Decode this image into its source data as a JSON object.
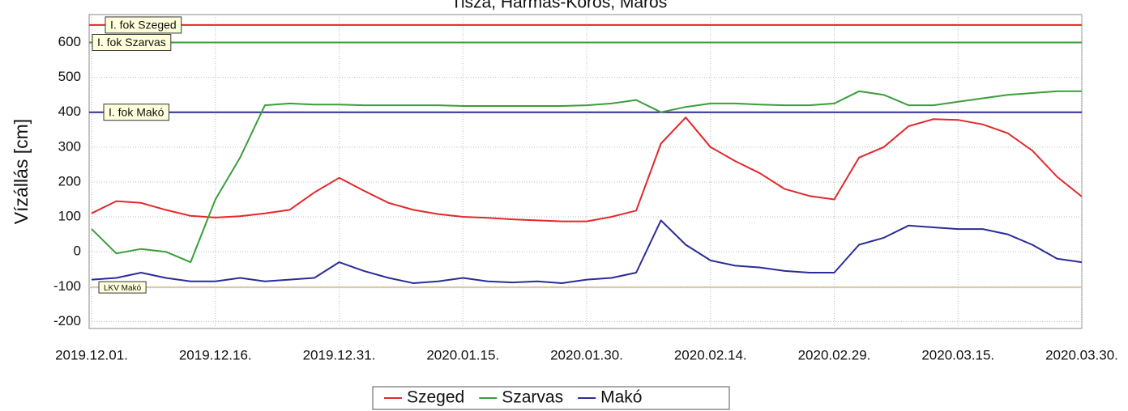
{
  "chart_data": {
    "type": "line",
    "title": "Tisza, Hármas-Körös, Maros",
    "y_label": "Vízállás [cm]",
    "x": [
      "2019-12-01",
      "2019-12-04",
      "2019-12-07",
      "2019-12-10",
      "2019-12-13",
      "2019-12-16",
      "2019-12-19",
      "2019-12-22",
      "2019-12-25",
      "2019-12-28",
      "2019-12-31",
      "2020-01-03",
      "2020-01-06",
      "2020-01-09",
      "2020-01-12",
      "2020-01-15",
      "2020-01-18",
      "2020-01-21",
      "2020-01-24",
      "2020-01-27",
      "2020-01-30",
      "2020-02-02",
      "2020-02-05",
      "2020-02-08",
      "2020-02-11",
      "2020-02-14",
      "2020-02-17",
      "2020-02-20",
      "2020-02-23",
      "2020-02-26",
      "2020-02-29",
      "2020-03-03",
      "2020-03-06",
      "2020-03-09",
      "2020-03-12",
      "2020-03-15",
      "2020-03-18",
      "2020-03-21",
      "2020-03-24",
      "2020-03-27",
      "2020-03-30"
    ],
    "series": [
      {
        "name": "Szeged",
        "color": "#e3282a",
        "values": [
          110,
          145,
          140,
          120,
          103,
          98,
          102,
          110,
          120,
          170,
          212,
          175,
          140,
          120,
          108,
          100,
          97,
          93,
          90,
          87,
          87,
          100,
          118,
          310,
          385,
          300,
          260,
          225,
          180,
          160,
          150,
          270,
          300,
          360,
          380,
          378,
          365,
          340,
          290,
          215,
          158
        ]
      },
      {
        "name": "Szarvas",
        "color": "#3a9e3a",
        "values": [
          65,
          -5,
          8,
          0,
          -30,
          150,
          270,
          420,
          425,
          422,
          422,
          420,
          420,
          420,
          420,
          418,
          418,
          418,
          418,
          418,
          420,
          425,
          435,
          400,
          415,
          425,
          425,
          422,
          420,
          420,
          425,
          460,
          450,
          420,
          420,
          430,
          440,
          450,
          455,
          460,
          460
        ]
      },
      {
        "name": "Makó",
        "color": "#2b2c96",
        "values": [
          -80,
          -75,
          -60,
          -75,
          -85,
          -85,
          -75,
          -85,
          -80,
          -75,
          -30,
          -55,
          -75,
          -90,
          -85,
          -75,
          -85,
          -88,
          -85,
          -90,
          -80,
          -75,
          -60,
          90,
          20,
          -25,
          -40,
          -45,
          -55,
          -60,
          -60,
          20,
          40,
          75,
          70,
          65,
          65,
          50,
          20,
          -20,
          -30
        ]
      }
    ],
    "thresholds": [
      {
        "label": "I. fok Szeged",
        "value": 650,
        "color": "#e3282a"
      },
      {
        "label": "I. fok Szarvas",
        "value": 600,
        "color": "#3a9e3a"
      },
      {
        "label": "I. fok Makó",
        "value": 400,
        "color": "#2b2c96"
      },
      {
        "label": "LKV Makó",
        "value": -102,
        "color": "#d9c9a9"
      }
    ],
    "xlim": [
      "2019-12-01",
      "2020-03-30"
    ],
    "xticks": [
      {
        "value": "2019-12-01",
        "label": "2019.12.01."
      },
      {
        "value": "2019-12-16",
        "label": "2019.12.16."
      },
      {
        "value": "2019-12-31",
        "label": "2019.12.31."
      },
      {
        "value": "2020-01-15",
        "label": "2020.01.15."
      },
      {
        "value": "2020-01-30",
        "label": "2020.01.30."
      },
      {
        "value": "2020-02-14",
        "label": "2020.02.14."
      },
      {
        "value": "2020-02-29",
        "label": "2020.02.29."
      },
      {
        "value": "2020-03-15",
        "label": "2020.03.15."
      },
      {
        "value": "2020-03-30",
        "label": "2020.03.30."
      }
    ],
    "ylim": [
      -220,
      680
    ],
    "yticks": [
      -200,
      -100,
      0,
      100,
      200,
      300,
      400,
      500,
      600
    ],
    "grid": true,
    "legend": "bottom"
  }
}
